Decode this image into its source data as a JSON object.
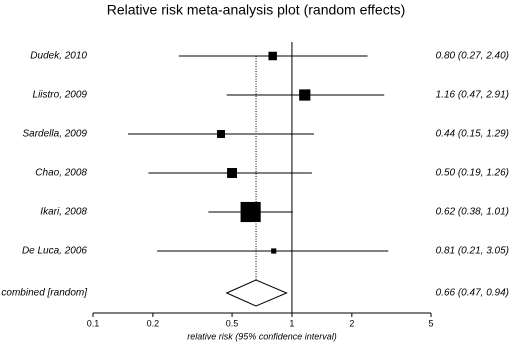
{
  "chart_data": {
    "type": "forest",
    "title": "Relative risk meta-analysis plot (random effects)",
    "x_label": "relative risk (95% confidence interval)",
    "categories": [
      "Dudek, 2010",
      "Liistro, 2009",
      "Sardella, 2009",
      "Chao, 2008",
      "Ikari, 2008",
      "De Luca, 2006"
    ],
    "values": [
      0.8,
      1.16,
      0.44,
      0.5,
      0.62,
      0.81
    ],
    "lower": [
      0.27,
      0.47,
      0.15,
      0.19,
      0.38,
      0.21
    ],
    "upper": [
      2.4,
      2.91,
      1.29,
      1.26,
      1.01,
      3.05
    ],
    "weights": [
      8,
      14,
      7,
      11,
      45,
      3
    ],
    "value_labels": [
      "0.80 (0.27, 2.40)",
      "1.16 (0.47, 2.91)",
      "0.44 (0.15, 1.29)",
      "0.50 (0.19, 1.26)",
      "0.62 (0.38, 1.01)",
      "0.81 (0.21, 3.05)"
    ],
    "combined": {
      "label": "combined [random]",
      "value": 0.66,
      "lower": 0.47,
      "upper": 0.94,
      "value_label": "0.66 (0.47, 0.94)"
    },
    "reference_line": 1,
    "log_x": true,
    "xlim": [
      0.1,
      5
    ],
    "xticks": [
      0.1,
      0.2,
      0.5,
      1,
      2,
      5
    ],
    "color": "#000000"
  }
}
